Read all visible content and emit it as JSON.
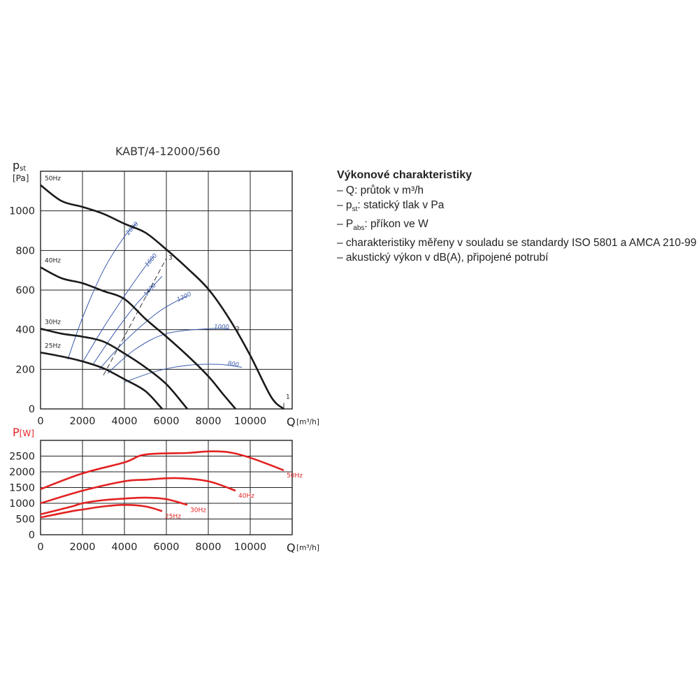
{
  "chart_data": [
    {
      "type": "line",
      "title": "KABT/4-12000/560",
      "ylabel_main": "p",
      "ylabel_sub": "st",
      "ylabel_unit": "[Pa]",
      "xlabel": "Q",
      "xlabel_unit": "[m³/h]",
      "xlim": [
        0,
        12000
      ],
      "ylim": [
        0,
        1200
      ],
      "xticks": [
        0,
        2000,
        4000,
        6000,
        8000,
        10000
      ],
      "yticks": [
        0,
        200,
        400,
        600,
        800,
        1000
      ],
      "grid": true,
      "series": [
        {
          "name": "50Hz",
          "points": [
            [
              0,
              1130
            ],
            [
              1000,
              1050
            ],
            [
              2000,
              1020
            ],
            [
              3000,
              985
            ],
            [
              4000,
              935
            ],
            [
              5000,
              890
            ],
            [
              6000,
              805
            ],
            [
              7000,
              710
            ],
            [
              8000,
              605
            ],
            [
              9000,
              455
            ],
            [
              10000,
              270
            ],
            [
              11000,
              60
            ],
            [
              11600,
              0
            ]
          ]
        },
        {
          "name": "40Hz",
          "points": [
            [
              0,
              715
            ],
            [
              1000,
              660
            ],
            [
              2000,
              635
            ],
            [
              3000,
              595
            ],
            [
              4000,
              555
            ],
            [
              5000,
              455
            ],
            [
              6000,
              365
            ],
            [
              7000,
              270
            ],
            [
              8000,
              165
            ],
            [
              8700,
              75
            ],
            [
              9300,
              0
            ]
          ]
        },
        {
          "name": "30Hz",
          "points": [
            [
              0,
              405
            ],
            [
              1000,
              380
            ],
            [
              2000,
              365
            ],
            [
              3000,
              340
            ],
            [
              4000,
              280
            ],
            [
              5000,
              210
            ],
            [
              6000,
              125
            ],
            [
              7000,
              0
            ]
          ]
        },
        {
          "name": "25Hz",
          "points": [
            [
              0,
              285
            ],
            [
              1000,
              265
            ],
            [
              2000,
              240
            ],
            [
              3000,
              205
            ],
            [
              4000,
              150
            ],
            [
              5000,
              90
            ],
            [
              5800,
              0
            ]
          ]
        }
      ],
      "efficiency_curves": [
        {
          "label": "2000",
          "points": [
            [
              1300,
              250
            ],
            [
              2000,
              460
            ],
            [
              3000,
              700
            ],
            [
              4000,
              870
            ],
            [
              4600,
              940
            ]
          ]
        },
        {
          "label": "1600",
          "points": [
            [
              2000,
              235
            ],
            [
              3000,
              410
            ],
            [
              4000,
              570
            ],
            [
              5000,
              720
            ],
            [
              5400,
              770
            ]
          ]
        },
        {
          "label": "1400",
          "points": [
            [
              2500,
              225
            ],
            [
              3500,
              380
            ],
            [
              4500,
              520
            ],
            [
              5800,
              670
            ]
          ]
        },
        {
          "label": "1200",
          "points": [
            [
              2800,
              200
            ],
            [
              4000,
              340
            ],
            [
              5500,
              480
            ],
            [
              6500,
              545
            ],
            [
              7000,
              570
            ]
          ]
        },
        {
          "label": "1000",
          "points": [
            [
              3200,
              180
            ],
            [
              4500,
              300
            ],
            [
              6000,
              380
            ],
            [
              8000,
              405
            ],
            [
              9000,
              405
            ]
          ]
        },
        {
          "label": "800",
          "points": [
            [
              4000,
              135
            ],
            [
              5500,
              190
            ],
            [
              7000,
              220
            ],
            [
              8500,
              225
            ],
            [
              9600,
              210
            ]
          ]
        }
      ],
      "system_lines": [
        {
          "label": "3",
          "points": [
            [
              3000,
              170
            ],
            [
              6000,
              760
            ]
          ]
        },
        {
          "label": "2",
          "points": [
            [
              7900,
              400
            ],
            [
              9200,
              400
            ]
          ]
        },
        {
          "label": "1",
          "points": [
            [
              11600,
              0
            ],
            [
              11600,
              30
            ]
          ]
        }
      ]
    },
    {
      "type": "line",
      "ylabel_main": "P",
      "ylabel_unit": "[W]",
      "xlabel": "Q",
      "xlabel_unit": "[m³/h]",
      "xlim": [
        0,
        12000
      ],
      "ylim": [
        0,
        3000
      ],
      "xticks": [
        0,
        2000,
        4000,
        6000,
        8000,
        10000
      ],
      "yticks": [
        0,
        500,
        1000,
        1500,
        2000,
        2500
      ],
      "grid": true,
      "series": [
        {
          "name": "50Hz",
          "points": [
            [
              0,
              1450
            ],
            [
              2000,
              1950
            ],
            [
              4000,
              2300
            ],
            [
              5000,
              2550
            ],
            [
              7000,
              2600
            ],
            [
              8000,
              2650
            ],
            [
              9000,
              2620
            ],
            [
              10000,
              2450
            ],
            [
              11600,
              2050
            ]
          ]
        },
        {
          "name": "40Hz",
          "points": [
            [
              0,
              1000
            ],
            [
              2000,
              1400
            ],
            [
              4000,
              1700
            ],
            [
              5000,
              1750
            ],
            [
              6500,
              1800
            ],
            [
              8000,
              1700
            ],
            [
              9300,
              1400
            ]
          ]
        },
        {
          "name": "30Hz",
          "points": [
            [
              0,
              650
            ],
            [
              1500,
              900
            ],
            [
              2000,
              1000
            ],
            [
              3000,
              1100
            ],
            [
              4000,
              1150
            ],
            [
              5000,
              1180
            ],
            [
              6000,
              1130
            ],
            [
              7000,
              950
            ]
          ]
        },
        {
          "name": "25Hz",
          "points": [
            [
              0,
              550
            ],
            [
              1500,
              750
            ],
            [
              2000,
              800
            ],
            [
              3000,
              900
            ],
            [
              4000,
              950
            ],
            [
              5000,
              900
            ],
            [
              5800,
              750
            ]
          ]
        }
      ]
    }
  ],
  "legend": {
    "title": "Výkonové charakteristiky",
    "item1": "– Q: průtok v m³/h",
    "item2_prefix": "– p",
    "item2_sub": "st",
    "item2_suffix": ": statický tlak v Pa",
    "item3_prefix": "– P",
    "item3_sub": "abs",
    "item3_suffix": ": příkon ve W",
    "item4": "– charakteristiky měřeny v souladu se standardy ISO 5801 a AMCA 210-99",
    "item5": "– akustický výkon v dB(A), připojené potrubí"
  },
  "colors": {
    "pressure_curve": "#1a1a1a",
    "efficiency_curve": "#3b5bab",
    "power_curve": "#e32222",
    "grid": "#222222",
    "axis_text": "#222222",
    "power_axis_label": "#e32222"
  }
}
